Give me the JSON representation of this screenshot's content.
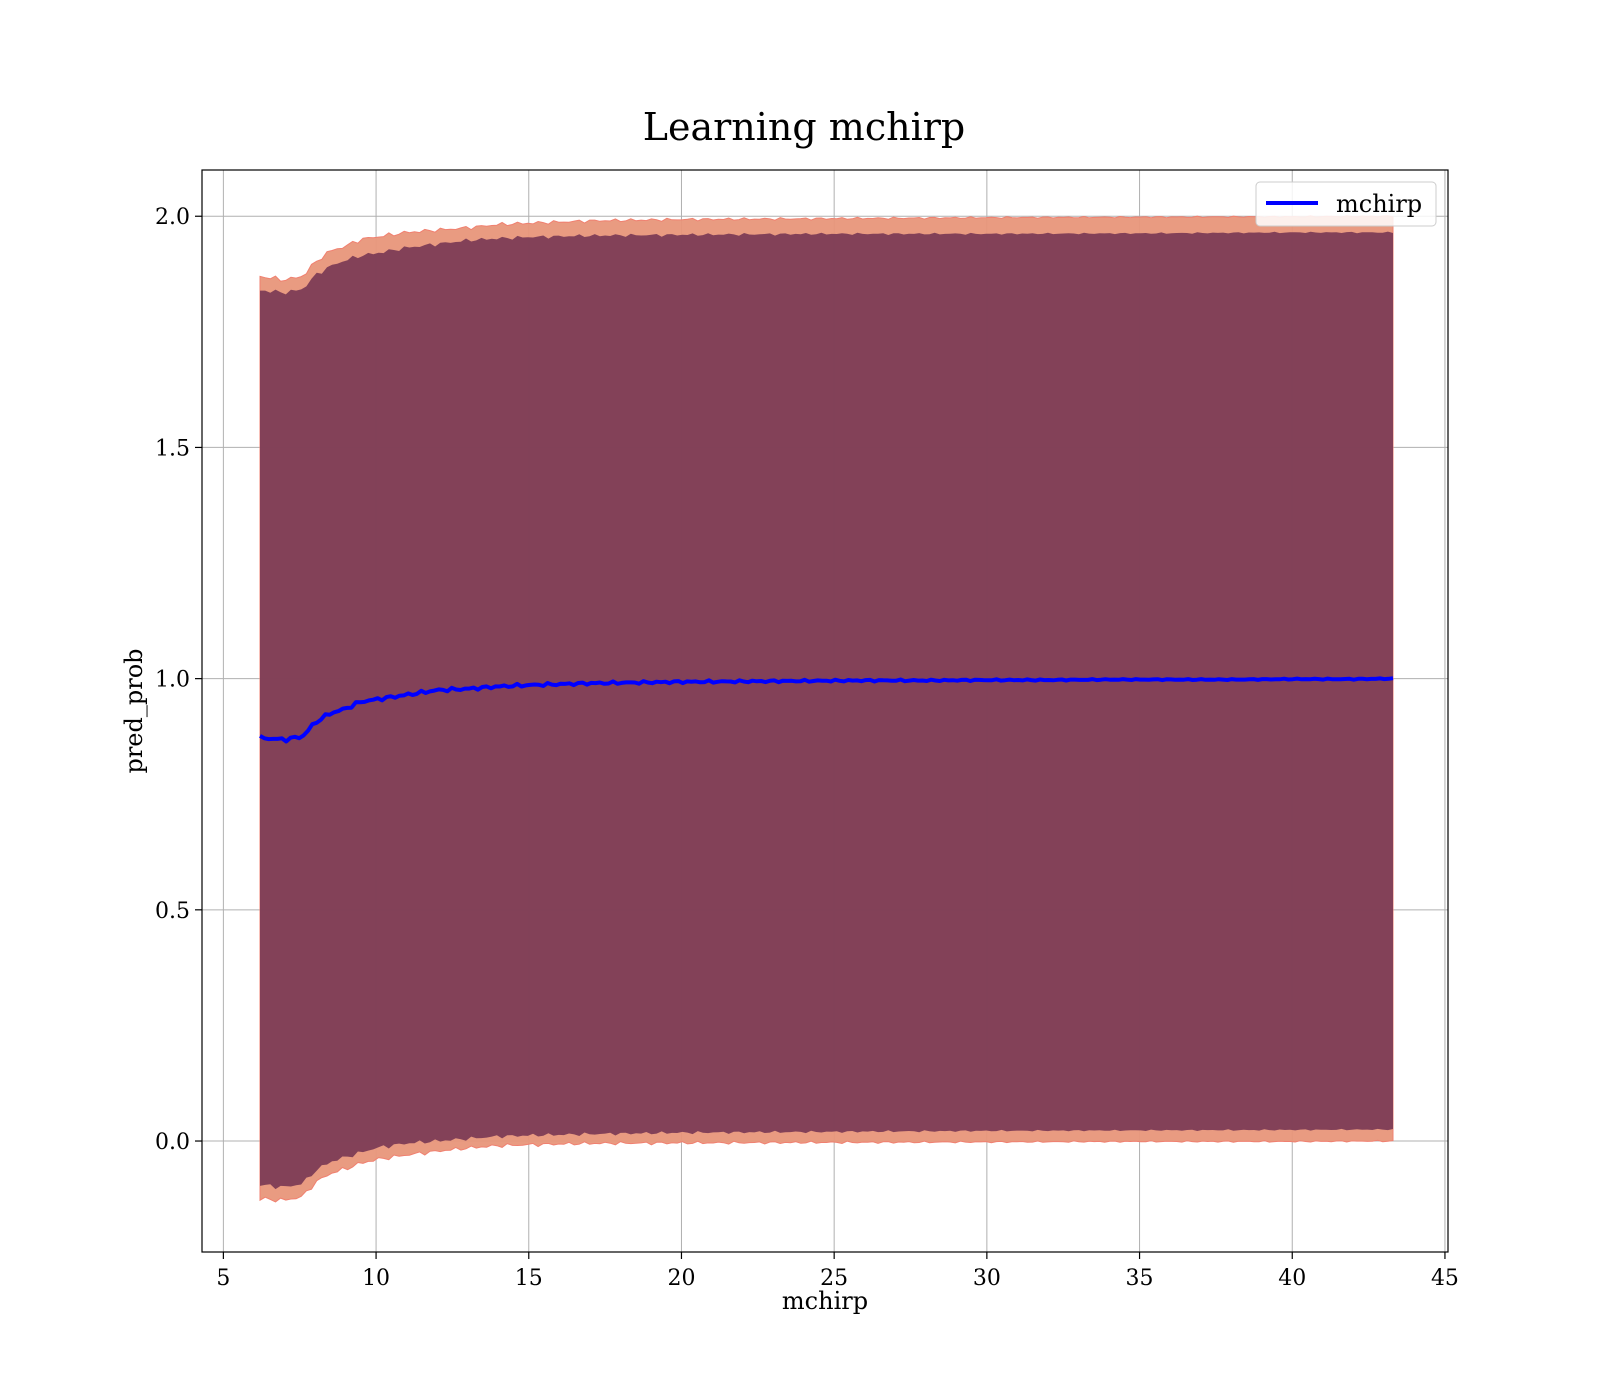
{
  "chart_data": {
    "type": "line",
    "title": "Learning mchirp",
    "xlabel": "mchirp",
    "ylabel": "pred_prob",
    "xlim": [
      4.3,
      45.1
    ],
    "ylim": [
      -0.24,
      2.1
    ],
    "xticks": [
      5,
      10,
      15,
      20,
      25,
      30,
      35,
      40,
      45
    ],
    "yticks": [
      0.0,
      0.5,
      1.0,
      1.5,
      2.0
    ],
    "xtick_labels": [
      "5",
      "10",
      "15",
      "20",
      "25",
      "30",
      "35",
      "40",
      "45"
    ],
    "ytick_labels": [
      "0.0",
      "0.5",
      "1.0",
      "1.5",
      "2.0"
    ],
    "grid": true,
    "legend": {
      "placement": "top-right",
      "entries": [
        "mchirp"
      ]
    },
    "series": [
      {
        "name": "mchirp",
        "color": "#0000ff",
        "x": [
          6.2,
          7.0,
          7.6,
          8.0,
          8.5,
          9.0,
          9.5,
          10.0,
          10.5,
          11.0,
          11.5,
          12.0,
          13.0,
          14.0,
          15.0,
          16.0,
          17.0,
          18.0,
          19.0,
          20.0,
          22.0,
          24.0,
          26.0,
          28.0,
          30.0,
          32.0,
          34.0,
          36.0,
          38.0,
          40.0,
          42.0,
          43.3
        ],
        "y": [
          0.872,
          0.868,
          0.875,
          0.905,
          0.925,
          0.935,
          0.95,
          0.955,
          0.96,
          0.965,
          0.97,
          0.975,
          0.978,
          0.983,
          0.986,
          0.988,
          0.99,
          0.991,
          0.992,
          0.993,
          0.994,
          0.995,
          0.996,
          0.996,
          0.997,
          0.997,
          0.998,
          0.998,
          0.998,
          0.999,
          0.999,
          1.0
        ]
      }
    ],
    "bands": [
      {
        "color": "#e8967a",
        "x": [
          6.2,
          7.0,
          7.6,
          8.0,
          8.5,
          9.0,
          9.5,
          10.0,
          11.0,
          12.0,
          13.0,
          14.0,
          15.0,
          17.0,
          20.0,
          25.0,
          30.0,
          35.0,
          40.0,
          43.3
        ],
        "upper": [
          1.87,
          1.862,
          1.87,
          1.9,
          1.925,
          1.935,
          1.95,
          1.955,
          1.965,
          1.97,
          1.975,
          1.982,
          1.985,
          1.99,
          1.993,
          1.995,
          1.997,
          1.998,
          1.999,
          2.0
        ],
        "lower": [
          -0.125,
          -0.128,
          -0.12,
          -0.09,
          -0.07,
          -0.06,
          -0.048,
          -0.04,
          -0.03,
          -0.022,
          -0.015,
          -0.01,
          -0.008,
          -0.005,
          -0.004,
          -0.003,
          -0.002,
          -0.001,
          -0.001,
          0.0
        ]
      },
      {
        "color": "#7a3a55",
        "x": [
          6.2,
          7.0,
          7.6,
          8.0,
          8.5,
          9.0,
          9.5,
          10.0,
          11.0,
          12.0,
          13.0,
          14.0,
          15.0,
          17.0,
          20.0,
          25.0,
          30.0,
          35.0,
          40.0,
          43.3
        ],
        "upper": [
          1.84,
          1.835,
          1.842,
          1.872,
          1.892,
          1.905,
          1.915,
          1.92,
          1.932,
          1.94,
          1.948,
          1.952,
          1.955,
          1.958,
          1.96,
          1.962,
          1.962,
          1.963,
          1.965,
          1.965
        ],
        "lower": [
          -0.095,
          -0.1,
          -0.092,
          -0.065,
          -0.045,
          -0.035,
          -0.025,
          -0.015,
          -0.005,
          0.0,
          0.005,
          0.01,
          0.012,
          0.015,
          0.018,
          0.02,
          0.022,
          0.023,
          0.024,
          0.025
        ]
      }
    ]
  }
}
